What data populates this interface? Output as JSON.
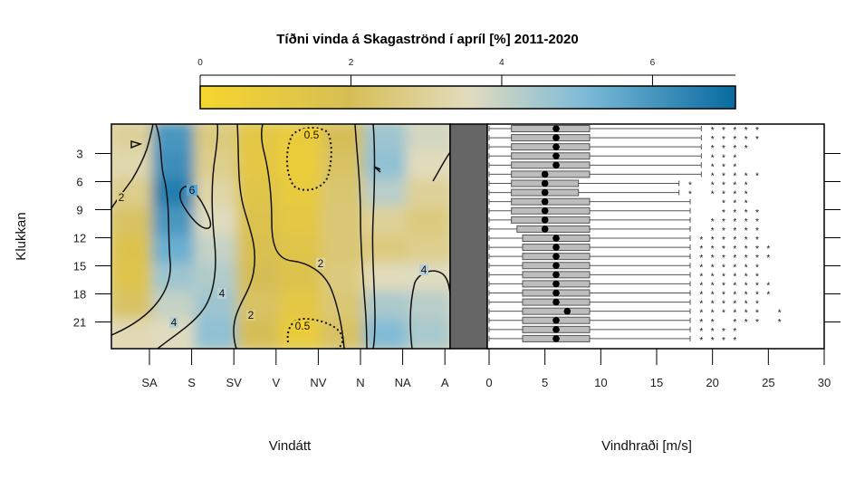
{
  "title": "Tíðni vinda á Skagaströnd í apríl [%] 2011-2020",
  "colorbar": {
    "ticks": [
      "0",
      "2",
      "4",
      "6"
    ],
    "min": 0,
    "max": 7.1,
    "colors": [
      "#f6d52d",
      "#d6be55",
      "#e2dcbe",
      "#7cbad8",
      "#076aa0"
    ]
  },
  "y_axis": {
    "label": "Klukkan",
    "ticks": [
      "3",
      "6",
      "9",
      "12",
      "15",
      "18",
      "21"
    ],
    "range": [
      0,
      24
    ]
  },
  "left_x_axis": {
    "label": "Vindátt",
    "ticks": [
      "SA",
      "S",
      "SV",
      "V",
      "NV",
      "N",
      "NA",
      "A"
    ]
  },
  "right_x_axis": {
    "label": "Vindhraði [m/s]",
    "ticks": [
      "0",
      "5",
      "10",
      "15",
      "20",
      "25",
      "30"
    ],
    "range": [
      0,
      30
    ]
  },
  "chart_data": [
    {
      "type": "heatmap",
      "title": "Tíðni vinda á Skagaströnd í apríl [%] 2011-2020",
      "xlabel": "Vindátt",
      "ylabel": "Klukkan",
      "x_categories": [
        "SA",
        "S",
        "SV",
        "V",
        "NV",
        "N",
        "NA",
        "A"
      ],
      "y_hours": [
        1,
        4,
        7,
        10,
        13,
        16,
        19,
        22
      ],
      "values": [
        [
          3.0,
          6.0,
          2.6,
          1.2,
          0.8,
          2.0,
          4.6,
          3.8
        ],
        [
          3.3,
          6.2,
          2.8,
          1.2,
          0.7,
          2.2,
          4.8,
          3.5
        ],
        [
          2.8,
          6.6,
          3.2,
          1.4,
          0.9,
          2.4,
          4.2,
          3.0
        ],
        [
          2.2,
          6.0,
          3.6,
          1.6,
          1.2,
          2.5,
          3.0,
          2.6
        ],
        [
          1.6,
          5.4,
          4.0,
          1.8,
          1.4,
          2.5,
          2.6,
          2.8
        ],
        [
          1.5,
          4.6,
          4.3,
          2.0,
          1.6,
          2.6,
          3.5,
          3.6
        ],
        [
          2.2,
          4.0,
          4.6,
          2.2,
          1.2,
          2.5,
          4.4,
          4.2
        ],
        [
          3.4,
          3.6,
          4.8,
          2.0,
          0.8,
          2.2,
          5.0,
          4.4
        ]
      ],
      "contour_labels": [
        "0.5",
        "0.5",
        "2",
        "2",
        "2",
        "4",
        "4",
        "4",
        "6"
      ],
      "colorbar_range": [
        0,
        7.1
      ]
    },
    {
      "type": "box",
      "xlabel": "Vindhraði [m/s]",
      "ylabel": "Klukkan",
      "xlim": [
        0,
        30
      ],
      "hours": [
        1,
        2,
        3,
        4,
        5,
        6,
        7,
        8,
        9,
        10,
        11,
        12,
        13,
        14,
        15,
        16,
        17,
        18,
        19,
        20,
        21,
        22,
        23,
        24
      ],
      "whisker_low": [
        0,
        0,
        0,
        0,
        0,
        0,
        0,
        0,
        0,
        0,
        0,
        0,
        0,
        0,
        0,
        0,
        0,
        0,
        0,
        0,
        0,
        0,
        0,
        0
      ],
      "q1": [
        2,
        2,
        2,
        2,
        2,
        2,
        2,
        2,
        2,
        2,
        2,
        2.5,
        3,
        3,
        3,
        3,
        3,
        3,
        3,
        3,
        3,
        3,
        3,
        3
      ],
      "median": [
        6,
        6,
        6,
        6,
        6,
        5,
        5,
        5,
        5,
        5,
        5,
        5,
        6,
        6,
        6,
        6,
        6,
        6,
        6,
        6,
        7,
        6,
        6,
        6
      ],
      "q3": [
        9,
        9,
        9,
        9,
        9,
        9,
        8,
        8,
        9,
        9,
        9,
        9,
        9,
        9,
        9,
        9,
        9,
        9,
        9,
        9,
        9,
        9,
        9,
        9
      ],
      "whisker_high": [
        19,
        19,
        19,
        19,
        19,
        19,
        17,
        17,
        18,
        18,
        18,
        18,
        18,
        18,
        18,
        18,
        18,
        18,
        18,
        18,
        18,
        18,
        18,
        18
      ],
      "outliers": [
        [
          20,
          21,
          22,
          23,
          24
        ],
        [
          20,
          21,
          22,
          23,
          24
        ],
        [
          20,
          21,
          22,
          23
        ],
        [
          20,
          21,
          22
        ],
        [
          20,
          21,
          22
        ],
        [
          20,
          21,
          22,
          23,
          24
        ],
        [
          18,
          20,
          21,
          22,
          23
        ],
        [
          18,
          20,
          21,
          22,
          23
        ],
        [
          21,
          22,
          23
        ],
        [
          21,
          22,
          23,
          24
        ],
        [
          20,
          21,
          22,
          23,
          24
        ],
        [
          20,
          21,
          22,
          23,
          24
        ],
        [
          19,
          20,
          21,
          22,
          23,
          24
        ],
        [
          19,
          20,
          21,
          22,
          23,
          24,
          25
        ],
        [
          19,
          20,
          21,
          22,
          23,
          24,
          25
        ],
        [
          19,
          20,
          21,
          22,
          23,
          24
        ],
        [
          19,
          20,
          21,
          22,
          23,
          24
        ],
        [
          19,
          20,
          21,
          22,
          23,
          24,
          25
        ],
        [
          19,
          20,
          21,
          22,
          23,
          24,
          25
        ],
        [
          19,
          20,
          21,
          22,
          23,
          24
        ],
        [
          19,
          20,
          21,
          22,
          23,
          24,
          26
        ],
        [
          19,
          20,
          22,
          23,
          24,
          26
        ],
        [
          19,
          20,
          21,
          22
        ],
        [
          19,
          20,
          21,
          22
        ]
      ]
    }
  ]
}
